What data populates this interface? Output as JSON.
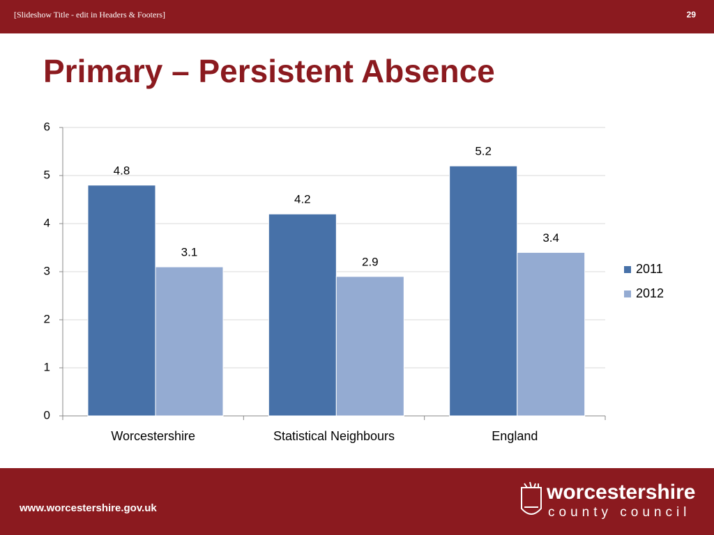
{
  "header": {
    "text": "[Slideshow Title - edit in Headers & Footers]",
    "slide_number": 29
  },
  "title": "Primary – Persistent Absence",
  "chart_data": {
    "type": "bar",
    "categories": [
      "Worcestershire",
      "Statistical Neighbours",
      "England"
    ],
    "series": [
      {
        "name": "2011",
        "color": "#4771a8",
        "values": [
          4.8,
          4.2,
          5.2
        ]
      },
      {
        "name": "2012",
        "color": "#94abd2",
        "values": [
          3.1,
          2.9,
          3.4
        ]
      }
    ],
    "ylim": [
      0,
      6
    ],
    "yticks": [
      0,
      1,
      2,
      3,
      4,
      5,
      6
    ],
    "grid": true,
    "legend": "right"
  },
  "footer": {
    "url": "www.worcestershire.gov.uk",
    "logo_name": "worcestershire",
    "logo_tagline": "county council"
  }
}
